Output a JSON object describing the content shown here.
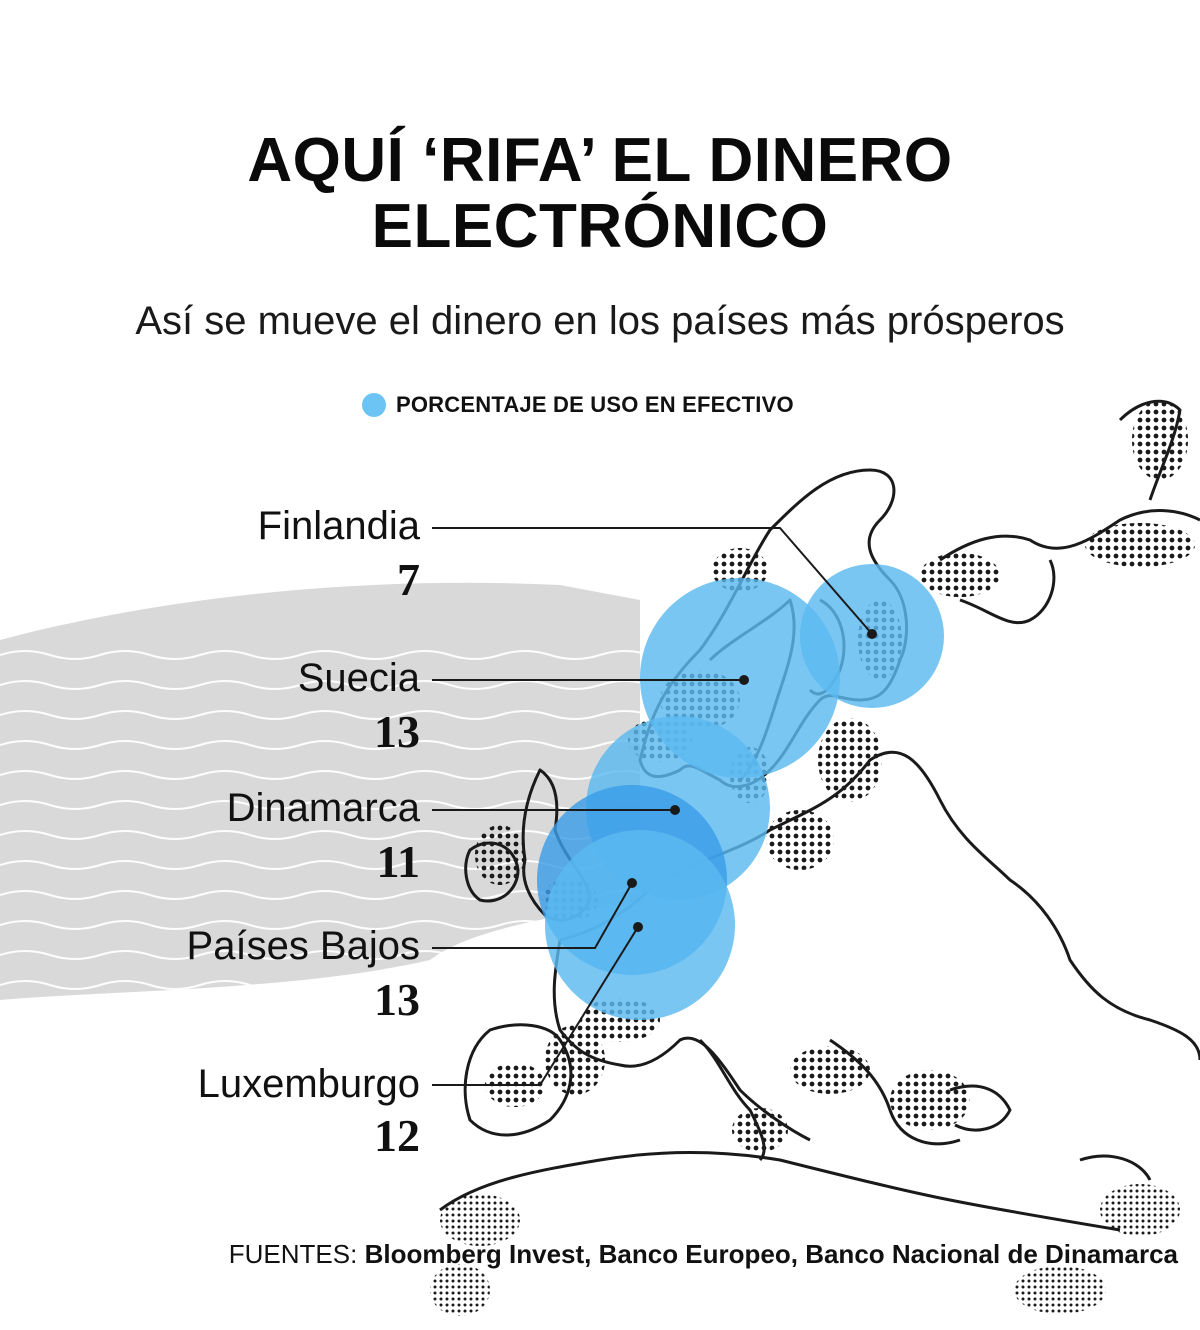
{
  "header": {
    "title_line1": "AQUÍ ‘RIFA’ EL DINERO",
    "title_line2": "ELECTRÓNICO",
    "subtitle": "Así se mueve el dinero en los países más prósperos"
  },
  "legend": {
    "label": "PORCENTAJE DE USO EN EFECTIVO",
    "color": "#6cc4f4"
  },
  "countries": [
    {
      "name": "Finlandia",
      "value": "7"
    },
    {
      "name": "Suecia",
      "value": "13"
    },
    {
      "name": "Dinamarca",
      "value": "11"
    },
    {
      "name": "Países Bajos",
      "value": "13"
    },
    {
      "name": "Luxemburgo",
      "value": "12"
    }
  ],
  "sources": {
    "prefix": "FUENTES:",
    "list": "Bloomberg Invest, Banco Europeo, Banco Nacional de Dinamarca"
  },
  "colors": {
    "bubble": "#5bbaf0",
    "bubble_overlap": "#2b8fe3",
    "wave_band": "#d9d9d9",
    "outline": "#1a1a1a"
  }
}
